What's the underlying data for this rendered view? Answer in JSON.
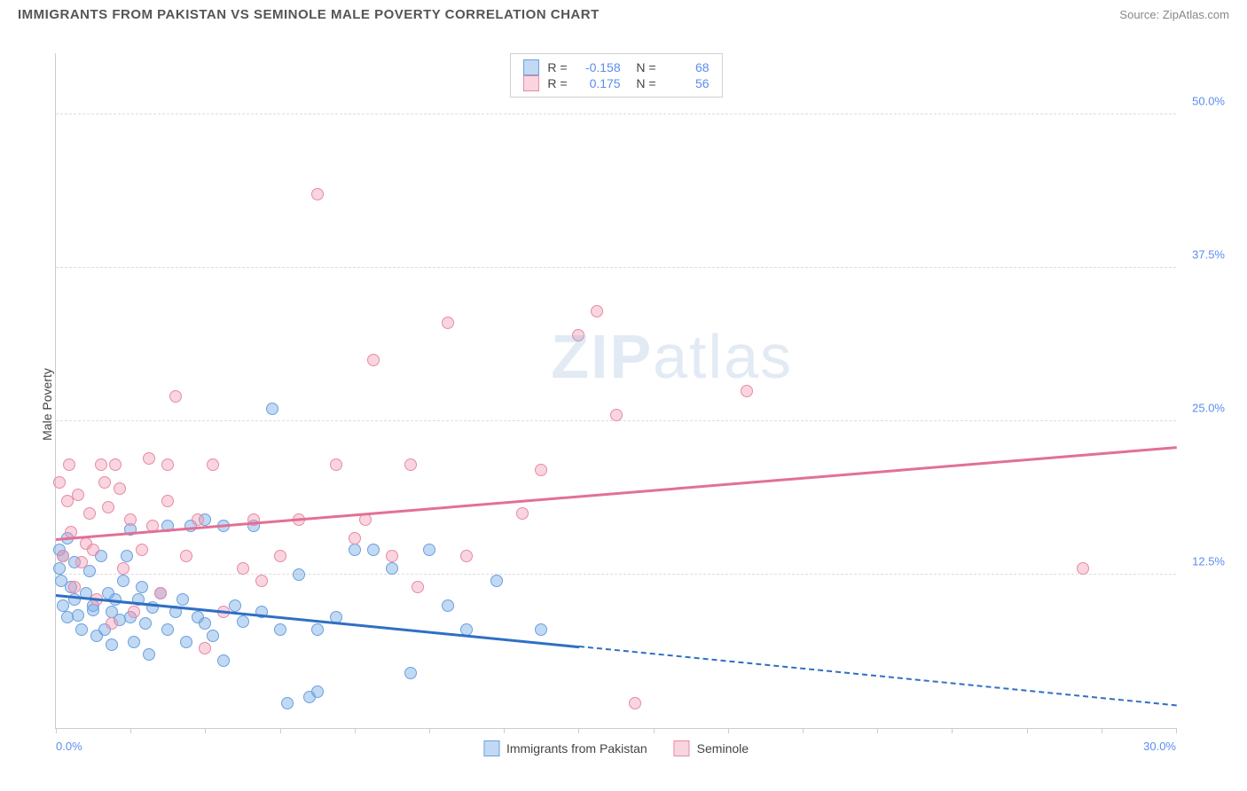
{
  "title": "IMMIGRANTS FROM PAKISTAN VS SEMINOLE MALE POVERTY CORRELATION CHART",
  "source_label": "Source:",
  "source_name": "ZipAtlas.com",
  "ylabel": "Male Poverty",
  "watermark_a": "ZIP",
  "watermark_b": "atlas",
  "chart": {
    "type": "scatter",
    "xlim": [
      0,
      30
    ],
    "ylim": [
      0,
      55
    ],
    "xticks": [
      0,
      2,
      4,
      6,
      8,
      10,
      12,
      14,
      16,
      18,
      20,
      22,
      24,
      26,
      28,
      30
    ],
    "xtick_labels_shown": {
      "0": "0.0%",
      "30": "30.0%"
    },
    "yticks": [
      12.5,
      25.0,
      37.5,
      50.0
    ],
    "ytick_labels": [
      "12.5%",
      "25.0%",
      "37.5%",
      "50.0%"
    ],
    "grid_color": "#dddddd",
    "axis_color": "#cccccc",
    "background_color": "#ffffff",
    "marker_radius": 7,
    "series": [
      {
        "name": "Immigrants from Pakistan",
        "R": "-0.158",
        "N": "68",
        "fill": "rgba(120,170,230,0.45)",
        "stroke": "#6aa0de",
        "trend": {
          "color": "#2f6fc4",
          "y_at_x0": 11.0,
          "y_at_x30": 2.0,
          "solid_until_x": 14
        },
        "points": [
          [
            0.1,
            14.5
          ],
          [
            0.1,
            13.0
          ],
          [
            0.15,
            12.0
          ],
          [
            0.2,
            14.0
          ],
          [
            0.2,
            10.0
          ],
          [
            0.3,
            15.5
          ],
          [
            0.3,
            9.0
          ],
          [
            0.4,
            11.5
          ],
          [
            0.5,
            13.5
          ],
          [
            0.5,
            10.5
          ],
          [
            0.6,
            9.2
          ],
          [
            0.7,
            8.0
          ],
          [
            0.8,
            11.0
          ],
          [
            0.9,
            12.8
          ],
          [
            1.0,
            10.0
          ],
          [
            1.0,
            9.6
          ],
          [
            1.1,
            7.5
          ],
          [
            1.2,
            14.0
          ],
          [
            1.3,
            8.0
          ],
          [
            1.4,
            11.0
          ],
          [
            1.5,
            9.5
          ],
          [
            1.5,
            6.8
          ],
          [
            1.6,
            10.5
          ],
          [
            1.7,
            8.8
          ],
          [
            1.8,
            12.0
          ],
          [
            1.9,
            14.0
          ],
          [
            2.0,
            9.0
          ],
          [
            2.0,
            16.2
          ],
          [
            2.1,
            7.0
          ],
          [
            2.2,
            10.5
          ],
          [
            2.3,
            11.5
          ],
          [
            2.4,
            8.5
          ],
          [
            2.5,
            6.0
          ],
          [
            2.6,
            9.8
          ],
          [
            2.8,
            11.0
          ],
          [
            3.0,
            16.5
          ],
          [
            3.0,
            8.0
          ],
          [
            3.2,
            9.5
          ],
          [
            3.4,
            10.5
          ],
          [
            3.5,
            7.0
          ],
          [
            3.6,
            16.5
          ],
          [
            3.8,
            9.0
          ],
          [
            4.0,
            17.0
          ],
          [
            4.0,
            8.5
          ],
          [
            4.2,
            7.5
          ],
          [
            4.5,
            16.5
          ],
          [
            4.5,
            5.5
          ],
          [
            4.8,
            10.0
          ],
          [
            5.0,
            8.7
          ],
          [
            5.3,
            16.5
          ],
          [
            5.5,
            9.5
          ],
          [
            5.8,
            26.0
          ],
          [
            6.0,
            8.0
          ],
          [
            6.2,
            2.0
          ],
          [
            6.5,
            12.5
          ],
          [
            6.8,
            2.5
          ],
          [
            7.0,
            3.0
          ],
          [
            7.0,
            8.0
          ],
          [
            7.5,
            9.0
          ],
          [
            8.0,
            14.5
          ],
          [
            8.5,
            14.5
          ],
          [
            9.0,
            13.0
          ],
          [
            9.5,
            4.5
          ],
          [
            10.0,
            14.5
          ],
          [
            10.5,
            10.0
          ],
          [
            11.0,
            8.0
          ],
          [
            11.8,
            12.0
          ],
          [
            13.0,
            8.0
          ]
        ]
      },
      {
        "name": "Seminole",
        "R": "0.175",
        "N": "56",
        "fill": "rgba(240,150,175,0.40)",
        "stroke": "#e88aa3",
        "trend": {
          "color": "#e27095",
          "y_at_x0": 15.5,
          "y_at_x30": 23.0,
          "solid_until_x": 30
        },
        "points": [
          [
            0.1,
            20.0
          ],
          [
            0.2,
            14.0
          ],
          [
            0.3,
            18.5
          ],
          [
            0.35,
            21.5
          ],
          [
            0.4,
            16.0
          ],
          [
            0.5,
            11.5
          ],
          [
            0.6,
            19.0
          ],
          [
            0.7,
            13.5
          ],
          [
            0.8,
            15.0
          ],
          [
            0.9,
            17.5
          ],
          [
            1.0,
            14.5
          ],
          [
            1.1,
            10.5
          ],
          [
            1.2,
            21.5
          ],
          [
            1.3,
            20.0
          ],
          [
            1.4,
            18.0
          ],
          [
            1.5,
            8.5
          ],
          [
            1.6,
            21.5
          ],
          [
            1.7,
            19.5
          ],
          [
            1.8,
            13.0
          ],
          [
            2.0,
            17.0
          ],
          [
            2.1,
            9.5
          ],
          [
            2.3,
            14.5
          ],
          [
            2.5,
            22.0
          ],
          [
            2.6,
            16.5
          ],
          [
            2.8,
            11.0
          ],
          [
            3.0,
            18.5
          ],
          [
            3.0,
            21.5
          ],
          [
            3.2,
            27.0
          ],
          [
            3.5,
            14.0
          ],
          [
            3.8,
            17.0
          ],
          [
            4.0,
            6.5
          ],
          [
            4.2,
            21.5
          ],
          [
            4.5,
            9.5
          ],
          [
            5.0,
            13.0
          ],
          [
            5.3,
            17.0
          ],
          [
            5.5,
            12.0
          ],
          [
            6.0,
            14.0
          ],
          [
            6.5,
            17.0
          ],
          [
            7.0,
            43.5
          ],
          [
            7.5,
            21.5
          ],
          [
            8.0,
            15.5
          ],
          [
            8.3,
            17.0
          ],
          [
            8.5,
            30.0
          ],
          [
            9.0,
            14.0
          ],
          [
            9.5,
            21.5
          ],
          [
            9.7,
            11.5
          ],
          [
            10.5,
            33.0
          ],
          [
            11.0,
            14.0
          ],
          [
            12.5,
            17.5
          ],
          [
            13.0,
            21.0
          ],
          [
            14.0,
            32.0
          ],
          [
            14.5,
            34.0
          ],
          [
            15.0,
            25.5
          ],
          [
            15.5,
            2.0
          ],
          [
            18.5,
            27.5
          ],
          [
            27.5,
            13.0
          ]
        ]
      }
    ]
  },
  "legend_top": {
    "r_label": "R =",
    "n_label": "N ="
  },
  "legend_bottom_labels": [
    "Immigrants from Pakistan",
    "Seminole"
  ]
}
